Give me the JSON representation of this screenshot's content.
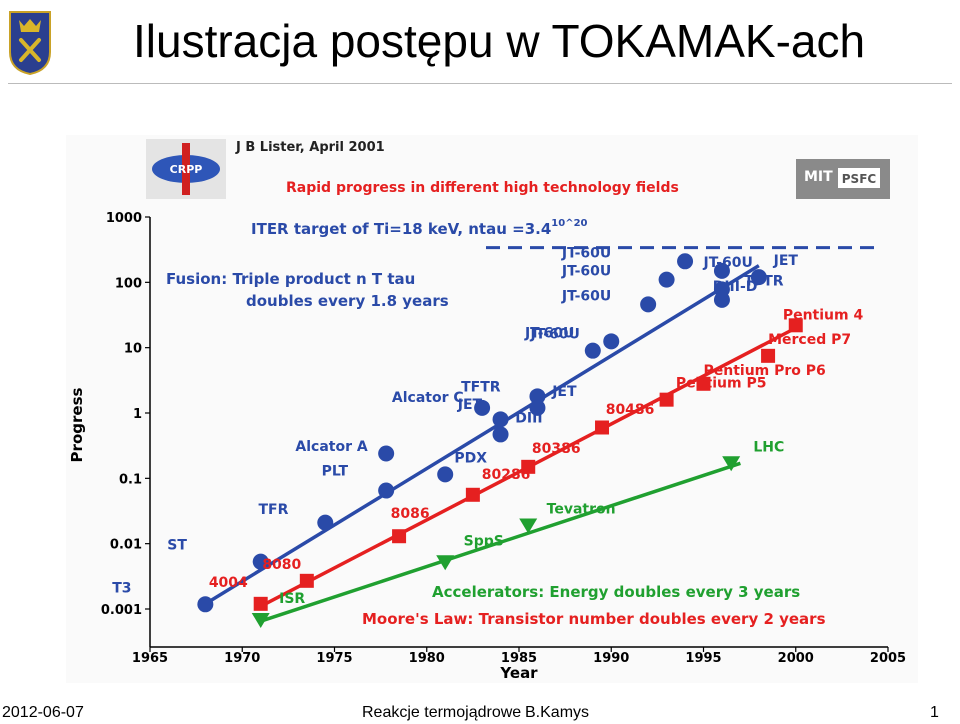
{
  "slide": {
    "title": "Ilustracja postępu w TOKAMAK-ach"
  },
  "footer": {
    "date": "2012-06-07",
    "course": "Reakcje termojądrowe",
    "author": "B.Kamys",
    "page": "1"
  },
  "figure": {
    "author_line": "J B Lister, April 2001",
    "crpp_logo_text": "CRPP",
    "mit_logo_text": "MIT",
    "psfc_logo_text": "PSFC",
    "subtitle": "Rapid progress in different high technology fields",
    "iter_line": "ITER target of Ti=18 keV, ntau =3.4",
    "iter_exponent": "10^20",
    "fusion_note_line1": "Fusion: Triple product  n T tau",
    "fusion_note_line2": "doubles every 1.8 years",
    "accelerators_note": "Accelerators: Energy doubles every 3 years",
    "moore_note": "Moore's Law: Transistor number doubles every 2 years"
  },
  "chart_data": {
    "type": "scatter",
    "xlabel": "Year",
    "ylabel": "Progress",
    "xlim": [
      1965,
      2005
    ],
    "ylim": [
      0.001,
      1000
    ],
    "yscale": "log",
    "x_ticks": [
      "1965",
      "1970",
      "1975",
      "1980",
      "1985",
      "1990",
      "1995",
      "2000",
      "2005"
    ],
    "y_ticks": [
      {
        "value": 1000,
        "label": "1000"
      },
      {
        "value": 100,
        "label": "100"
      },
      {
        "value": 10,
        "label": "10"
      },
      {
        "value": 1,
        "label": "1"
      },
      {
        "value": 0.1,
        "label": "0.1"
      },
      {
        "value": 0.01,
        "label": "0.01"
      },
      {
        "value": 0.001,
        "label": "0.001"
      }
    ],
    "grid": false,
    "iter_target": {
      "y": 340
    },
    "series": [
      {
        "color": "#2a4aa8",
        "marker": "circle",
        "trend": {
          "x": [
            1968,
            1998
          ],
          "y": [
            0.0012,
            180
          ]
        },
        "points": [
          {
            "x": 1968.0,
            "y": 0.00118,
            "label": "T3",
            "lx": -4,
            "ly": -1,
            "anchor": "end"
          },
          {
            "x": 1971.0,
            "y": 0.0053,
            "label": "ST",
            "lx": -4,
            "ly": -1,
            "anchor": "end"
          },
          {
            "x": 1974.5,
            "y": 0.021,
            "label": "TFR",
            "lx": -2,
            "ly": -0.8,
            "anchor": "end"
          },
          {
            "x": 1977.8,
            "y": 0.065,
            "label": "PLT",
            "lx": -3.5,
            "ly": -1.2,
            "anchor": "start"
          },
          {
            "x": 1977.8,
            "y": 0.24,
            "label": "Alcator A",
            "lx": -1,
            "ly": -0.4,
            "anchor": "end"
          },
          {
            "x": 1981.0,
            "y": 0.115,
            "label": "PDX",
            "lx": 0.5,
            "ly": -1,
            "anchor": "start"
          },
          {
            "x": 1983.0,
            "y": 1.2,
            "label": "Alcator C",
            "lx": -1,
            "ly": -0.6,
            "anchor": "end"
          },
          {
            "x": 1984.0,
            "y": 0.8,
            "label": "JET",
            "lx": -1,
            "ly": -0.9,
            "anchor": "end"
          },
          {
            "x": 1984.0,
            "y": 0.47,
            "label": "DIII",
            "lx": 0.8,
            "ly": -1,
            "anchor": "start"
          },
          {
            "x": 1986.0,
            "y": 1.8,
            "label": "TFTR",
            "lx": -2,
            "ly": -0.55,
            "anchor": "end"
          },
          {
            "x": 1986.0,
            "y": 1.2,
            "label": "JET",
            "lx": 0.8,
            "ly": -1,
            "anchor": "start"
          },
          {
            "x": 1989.0,
            "y": 9.0,
            "label": "JT-60U",
            "lx": -0.7,
            "ly": -1,
            "anchor": "end"
          },
          {
            "x": 1990.0,
            "y": 12.5,
            "label": "JT-60U",
            "lx": -2,
            "ly": -0.5,
            "anchor": "end"
          },
          {
            "x": 1992.0,
            "y": 46,
            "label": "JT-60U",
            "lx": -2,
            "ly": -0.5,
            "anchor": "end"
          },
          {
            "x": 1993.0,
            "y": 110,
            "label": "JT-60U",
            "lx": -3,
            "ly": -0.5,
            "anchor": "end"
          },
          {
            "x": 1994.0,
            "y": 210,
            "label": "JT-60U",
            "lx": -4,
            "ly": -0.5,
            "anchor": "end"
          },
          {
            "x": 1996.0,
            "y": 150,
            "label": "JT-60U",
            "lx": -1,
            "ly": -0.5,
            "anchor": "start"
          },
          {
            "x": 1996.0,
            "y": 78,
            "label": "TFTR",
            "lx": 1.2,
            "ly": -0.5,
            "anchor": "start"
          },
          {
            "x": 1996.0,
            "y": 54,
            "label": "DIII-D",
            "lx": -0.5,
            "ly": -0.8,
            "anchor": "start"
          },
          {
            "x": 1998.0,
            "y": 120,
            "label": "JET",
            "lx": 0.8,
            "ly": -1,
            "anchor": "start"
          }
        ]
      },
      {
        "color": "#e52020",
        "marker": "square",
        "trend": {
          "x": [
            1971,
            2000
          ],
          "y": [
            0.0011,
            20
          ]
        },
        "points": [
          {
            "x": 1971.0,
            "y": 0.0012,
            "label": "4004",
            "lx": -0.7,
            "ly": -1.3,
            "anchor": "end"
          },
          {
            "x": 1973.5,
            "y": 0.0027,
            "label": "8080",
            "lx": -0.3,
            "ly": -1,
            "anchor": "end"
          },
          {
            "x": 1978.5,
            "y": 0.013,
            "label": "8086",
            "lx": 0.6,
            "ly": -1.4,
            "anchor": "middle"
          },
          {
            "x": 1982.5,
            "y": 0.056,
            "label": "80286",
            "lx": 1.8,
            "ly": -1.25,
            "anchor": "middle"
          },
          {
            "x": 1985.5,
            "y": 0.15,
            "label": "80386",
            "lx": 0.2,
            "ly": -1.1,
            "anchor": "start"
          },
          {
            "x": 1989.5,
            "y": 0.6,
            "label": "80486",
            "lx": 0.2,
            "ly": -1.1,
            "anchor": "start"
          },
          {
            "x": 1993.0,
            "y": 1.6,
            "label": "Pentium P5",
            "lx": 0.5,
            "ly": -1,
            "anchor": "start"
          },
          {
            "x": 1995.0,
            "y": 2.8,
            "label": "Pentium Pro P6",
            "lx": 0,
            "ly": -0.8,
            "anchor": "start"
          },
          {
            "x": 1998.5,
            "y": 7.5,
            "label": "Merced P7",
            "lx": 0,
            "ly": -1,
            "anchor": "start"
          },
          {
            "x": 2000.0,
            "y": 22,
            "label": "Pentium 4",
            "lx": -0.7,
            "ly": -0.6,
            "anchor": "start"
          }
        ]
      },
      {
        "color": "#20a030",
        "marker": "triangle",
        "trend": {
          "x": [
            1971,
            1997
          ],
          "y": [
            0.00065,
            0.17
          ]
        },
        "points": [
          {
            "x": 1971.0,
            "y": 0.00068,
            "label": "ISR",
            "lx": 1,
            "ly": -1.3,
            "anchor": "start"
          },
          {
            "x": 1981.0,
            "y": 0.0052,
            "label": "SppS",
            "lx": 1,
            "ly": -1.3,
            "anchor": "start"
          },
          {
            "x": 1985.5,
            "y": 0.019,
            "label": "Tevatron",
            "lx": 1,
            "ly": -1,
            "anchor": "start"
          },
          {
            "x": 1996.5,
            "y": 0.17,
            "label": "LHC",
            "lx": 1.2,
            "ly": -1,
            "anchor": "start"
          }
        ]
      }
    ]
  }
}
